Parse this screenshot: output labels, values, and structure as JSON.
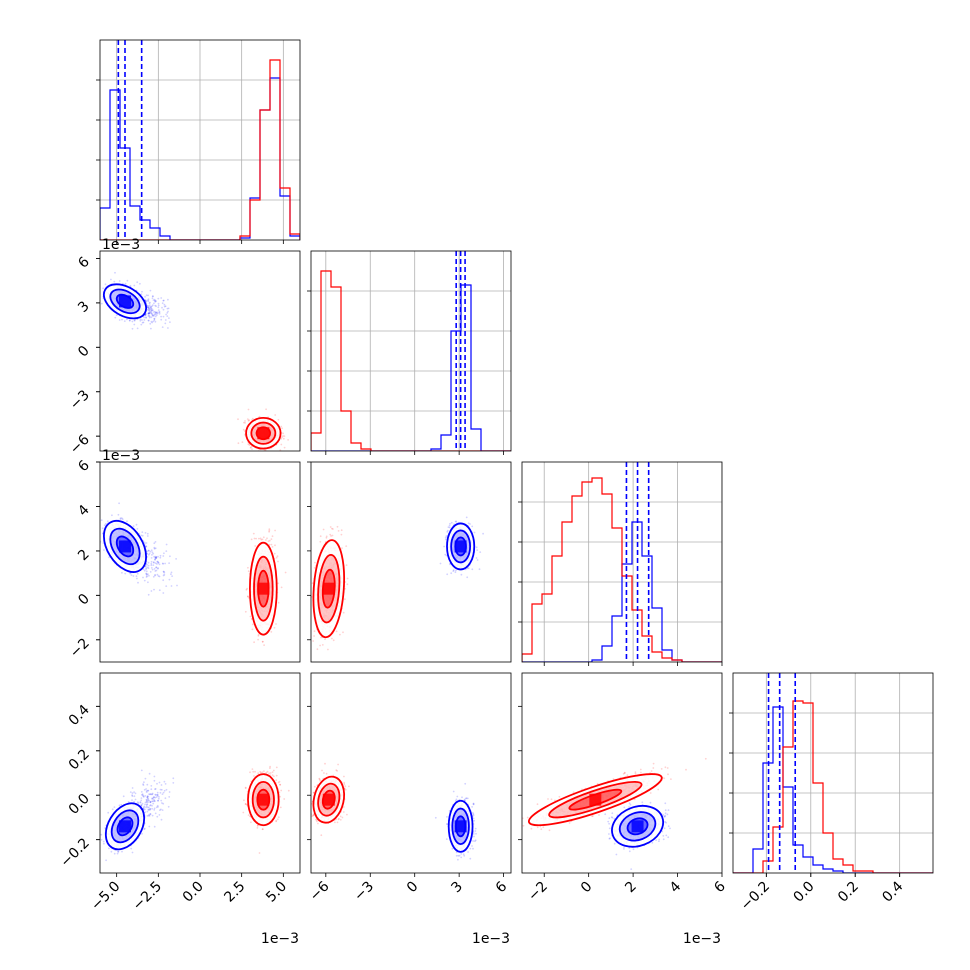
{
  "chart_data": {
    "type": "corner",
    "grid": true,
    "colors": {
      "blue": "#0000ff",
      "red": "#ff0000"
    },
    "variables": [
      {
        "range": [
          -6,
          6
        ],
        "ticks": [
          -5.0,
          -2.5,
          0.0,
          2.5,
          5.0
        ],
        "tick_labels": [
          "−5.0",
          "−2.5",
          "0.0",
          "2.5",
          "5.0"
        ],
        "offset_label": "1e−3"
      },
      {
        "range": [
          -7,
          6.5
        ],
        "ticks": [
          -6,
          -3,
          0,
          3,
          6
        ],
        "tick_labels": [
          "−6",
          "−3",
          "0",
          "3",
          "6"
        ],
        "offset_label": "1e−3"
      },
      {
        "range": [
          -3,
          6
        ],
        "ticks": [
          -2,
          0,
          2,
          4,
          6
        ],
        "tick_labels": [
          "−2",
          "0",
          "2",
          "4",
          "6"
        ],
        "offset_label": "1e−3"
      },
      {
        "range": [
          -0.35,
          0.55
        ],
        "ticks": [
          -0.2,
          0.0,
          0.2,
          0.4
        ],
        "tick_labels": [
          "−0.2",
          "0.0",
          "0.2",
          "0.4"
        ],
        "offset_label": ""
      }
    ],
    "series": [
      {
        "name": "",
        "color": "#0000ff",
        "mean": [
          -4.5,
          3.1,
          2.2,
          -0.14
        ],
        "quantiles": [
          [
            -4.9,
            -4.5,
            -3.5
          ],
          [
            2.8,
            3.1,
            3.4
          ],
          [
            1.7,
            2.2,
            2.7
          ],
          [
            -0.19,
            -0.14,
            -0.07
          ]
        ]
      },
      {
        "name": "",
        "color": "#ff0000",
        "mean": [
          3.8,
          -5.8,
          0.3,
          -0.02
        ],
        "quantiles": [],
        "notes": ""
      }
    ],
    "histograms": [
      {
        "edges": [
          -6,
          -5.4,
          -4.8,
          -4.2,
          -3.6,
          -3.0,
          -2.4,
          -1.8,
          -1.2,
          -0.6,
          0,
          0.6,
          1.2,
          1.8,
          2.4,
          3.0,
          3.6,
          4.2,
          4.8,
          5.4,
          6.0
        ],
        "blue": [
          0.16,
          0.75,
          0.46,
          0.17,
          0.1,
          0.06,
          0.02,
          0,
          0,
          0,
          0,
          0,
          0,
          0,
          0.01,
          0.21,
          0.65,
          0.81,
          0.22,
          0.02
        ],
        "red": [
          0,
          0,
          0,
          0,
          0,
          0,
          0,
          0,
          0,
          0,
          0,
          0,
          0,
          0,
          0.02,
          0.2,
          0.65,
          0.9,
          0.26,
          0.03
        ]
      },
      {
        "edges": [
          -7,
          -6.325,
          -5.65,
          -4.975,
          -4.3,
          -3.625,
          -2.95,
          -2.275,
          -1.6,
          -0.925,
          -0.25,
          0.425,
          1.1,
          1.775,
          2.45,
          3.125,
          3.8,
          4.475,
          5.15,
          5.825,
          6.5
        ],
        "blue": [
          0,
          0,
          0,
          0,
          0,
          0,
          0,
          0,
          0,
          0,
          0,
          0,
          0.01,
          0.08,
          0.6,
          0.83,
          0.11,
          0,
          0,
          0
        ],
        "red": [
          0.09,
          0.9,
          0.82,
          0.2,
          0.04,
          0.01,
          0,
          0,
          0,
          0,
          0,
          0,
          0,
          0,
          0,
          0,
          0,
          0,
          0,
          0
        ]
      },
      {
        "edges": [
          -3,
          -2.55,
          -2.1,
          -1.65,
          -1.2,
          -0.75,
          -0.3,
          0.15,
          0.6,
          1.05,
          1.5,
          1.95,
          2.4,
          2.85,
          3.3,
          3.75,
          4.2,
          4.65,
          5.1,
          5.55,
          6.0
        ],
        "blue": [
          0,
          0,
          0,
          0,
          0,
          0,
          0,
          0.01,
          0.08,
          0.23,
          0.49,
          0.7,
          0.53,
          0.27,
          0.06,
          0.01,
          0,
          0,
          0,
          0
        ],
        "red": [
          0.04,
          0.29,
          0.34,
          0.53,
          0.7,
          0.83,
          0.9,
          0.92,
          0.84,
          0.67,
          0.43,
          0.26,
          0.13,
          0.05,
          0.02,
          0.01,
          0,
          0,
          0,
          0
        ]
      },
      {
        "edges": [
          -0.35,
          -0.305,
          -0.26,
          -0.215,
          -0.17,
          -0.125,
          -0.08,
          -0.035,
          0.01,
          0.055,
          0.1,
          0.145,
          0.19,
          0.235,
          0.28,
          0.325,
          0.37,
          0.415,
          0.46,
          0.505,
          0.55
        ],
        "blue": [
          0,
          0,
          0.12,
          0.55,
          0.83,
          0.43,
          0.14,
          0.08,
          0.04,
          0.02,
          0.01,
          0,
          0,
          0,
          0,
          0,
          0,
          0,
          0,
          0
        ],
        "red": [
          0,
          0,
          0,
          0.06,
          0.23,
          0.63,
          0.86,
          0.85,
          0.45,
          0.2,
          0.07,
          0.04,
          0.01,
          0.01,
          0,
          0,
          0,
          0,
          0,
          0
        ]
      }
    ],
    "correlations": [
      {
        "x": 0,
        "y": 1,
        "blue": {
          "sx": 0.55,
          "sy": 0.5,
          "r": -0.4,
          "tail_dx": 1.5,
          "tail_dy": -0.5
        },
        "red": {
          "sx": 0.45,
          "sy": 0.45,
          "r": 0.0
        }
      },
      {
        "x": 0,
        "y": 2,
        "blue": {
          "sx": 0.55,
          "sy": 0.5,
          "r": -0.4,
          "tail_dx": 1.5,
          "tail_dy": -0.7
        },
        "red": {
          "sx": 0.35,
          "sy": 0.9,
          "r": 0.0
        }
      },
      {
        "x": 0,
        "y": 3,
        "blue": {
          "sx": 0.5,
          "sy": 0.045,
          "r": 0.35,
          "tail_dx": 1.5,
          "tail_dy": 0.12
        },
        "red": {
          "sx": 0.4,
          "sy": 0.05,
          "r": 0.0
        }
      },
      {
        "x": 1,
        "y": 2,
        "blue": {
          "sx": 0.4,
          "sy": 0.45,
          "r": 0.0
        },
        "red": {
          "sx": 0.45,
          "sy": 0.95,
          "r": 0.2
        }
      },
      {
        "x": 1,
        "y": 3,
        "blue": {
          "sx": 0.35,
          "sy": 0.05,
          "r": 0.0
        },
        "red": {
          "sx": 0.45,
          "sy": 0.045,
          "r": 0.2
        }
      },
      {
        "x": 2,
        "y": 3,
        "blue": {
          "sx": 0.5,
          "sy": 0.04,
          "r": 0.2
        },
        "red": {
          "sx": 1.3,
          "sy": 0.05,
          "r": 0.85
        }
      }
    ],
    "gridlines": {
      "hist": [
        [
          -5.0,
          -2.5,
          0.0,
          2.5,
          5.0
        ],
        [
          -6,
          -3,
          0,
          3,
          6
        ],
        [
          -2,
          0,
          2,
          4,
          6
        ],
        [
          -0.2,
          0.0,
          0.2,
          0.4
        ]
      ]
    }
  }
}
